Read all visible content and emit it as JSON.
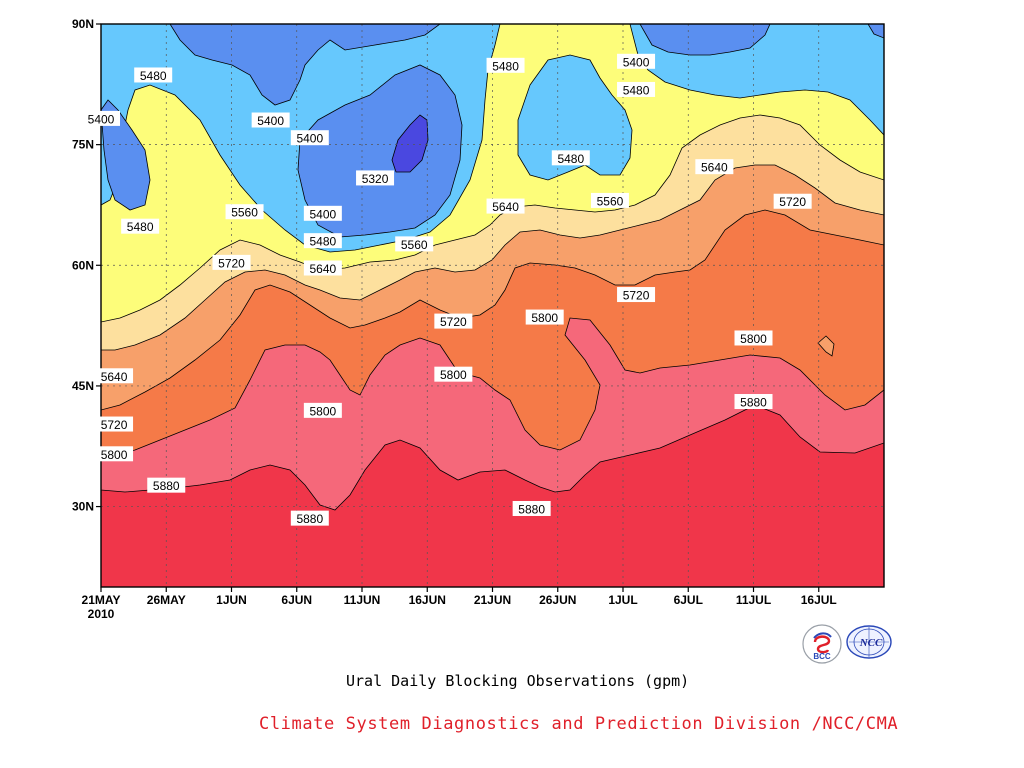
{
  "chart_data": {
    "type": "contour",
    "title": "Ural Daily Blocking Observations (gpm)",
    "y_ticks": [
      "90N",
      "75N",
      "60N",
      "45N",
      "30N"
    ],
    "x_ticks": [
      "21MAY",
      "26MAY",
      "1JUN",
      "6JUN",
      "11JUN",
      "16JUN",
      "21JUN",
      "26JUN",
      "1JUL",
      "6JUL",
      "11JUL",
      "16JUL"
    ],
    "x_year": "2010",
    "ylim": [
      20,
      90
    ],
    "xlim": [
      "2010-05-21",
      "2010-07-20"
    ],
    "grid": true,
    "contour_levels": [
      5320,
      5400,
      5480,
      5560,
      5640,
      5720,
      5800,
      5880
    ],
    "fill_colors": {
      "above_5880": "#f0364a",
      "5800_5880": "#f5687a",
      "5720_5800": "#f57a48",
      "5640_5720": "#f7a06a",
      "5560_5640": "#fde09e",
      "5480_5560": "#fdfd7a",
      "5400_5480": "#66c8fd",
      "5320_5400": "#5a8ff0",
      "below_5320": "#4a48e0"
    },
    "labels": [
      {
        "text": "5480",
        "date": "2010-05-25",
        "lat": 83.6
      },
      {
        "text": "5400",
        "date": "2010-05-21",
        "lat": 78.2
      },
      {
        "text": "5480",
        "date": "2010-05-24",
        "lat": 64.8
      },
      {
        "text": "5400",
        "date": "2010-06-03",
        "lat": 78.0
      },
      {
        "text": "5400",
        "date": "2010-06-06",
        "lat": 75.8
      },
      {
        "text": "5320",
        "date": "2010-06-11",
        "lat": 70.8
      },
      {
        "text": "5560",
        "date": "2010-06-01",
        "lat": 66.6
      },
      {
        "text": "5400",
        "date": "2010-06-07",
        "lat": 66.4
      },
      {
        "text": "5480",
        "date": "2010-06-07",
        "lat": 63.0
      },
      {
        "text": "5640",
        "date": "2010-06-07",
        "lat": 59.6
      },
      {
        "text": "5560",
        "date": "2010-06-14",
        "lat": 62.6
      },
      {
        "text": "5720",
        "date": "2010-05-31",
        "lat": 60.3
      },
      {
        "text": "5480",
        "date": "2010-06-21",
        "lat": 84.8
      },
      {
        "text": "5480",
        "date": "2010-06-26",
        "lat": 73.3
      },
      {
        "text": "5640",
        "date": "2010-06-21",
        "lat": 67.3
      },
      {
        "text": "5560",
        "date": "2010-06-29",
        "lat": 68.0
      },
      {
        "text": "5400",
        "date": "2010-07-01",
        "lat": 85.3
      },
      {
        "text": "5480",
        "date": "2010-07-01",
        "lat": 81.8
      },
      {
        "text": "5640",
        "date": "2010-07-07",
        "lat": 72.2
      },
      {
        "text": "5720",
        "date": "2010-07-13",
        "lat": 67.9
      },
      {
        "text": "5720",
        "date": "2010-07-01",
        "lat": 56.3
      },
      {
        "text": "5720",
        "date": "2010-06-17",
        "lat": 53.0
      },
      {
        "text": "5800",
        "date": "2010-06-24",
        "lat": 53.5
      },
      {
        "text": "5800",
        "date": "2010-07-10",
        "lat": 50.9
      },
      {
        "text": "5640",
        "date": "2010-05-22",
        "lat": 46.2
      },
      {
        "text": "5800",
        "date": "2010-06-17",
        "lat": 46.4
      },
      {
        "text": "5800",
        "date": "2010-06-07",
        "lat": 41.9
      },
      {
        "text": "5880",
        "date": "2010-07-10",
        "lat": 43.0
      },
      {
        "text": "5720",
        "date": "2010-05-22",
        "lat": 40.2
      },
      {
        "text": "5800",
        "date": "2010-05-22",
        "lat": 36.5
      },
      {
        "text": "5880",
        "date": "2010-05-26",
        "lat": 32.6
      },
      {
        "text": "5880",
        "date": "2010-06-06",
        "lat": 28.5
      },
      {
        "text": "5880",
        "date": "2010-06-23",
        "lat": 29.7
      }
    ]
  },
  "caption": {
    "title": "Ural Daily Blocking Observations (gpm)",
    "organization": "Climate System Diagnostics and Prediction Division /NCC/CMA",
    "organization_color": "#e0202a"
  },
  "logos": {
    "bcc": "BCC",
    "ncc": "NCC"
  }
}
